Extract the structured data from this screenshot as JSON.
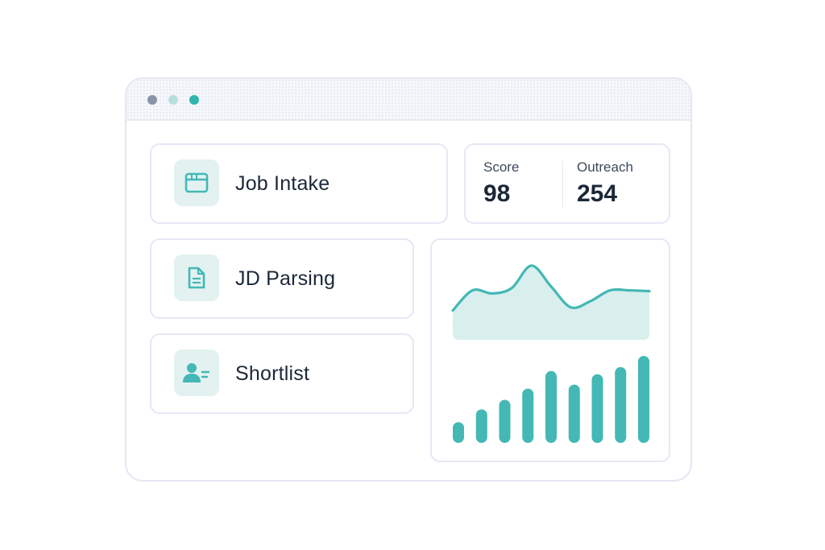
{
  "colors": {
    "accent": "#43b8b5",
    "accent_light": "#d9efed",
    "text_dark": "#1b2838",
    "dot_1": "#8a94a6",
    "dot_2": "#b8dedb",
    "dot_3": "#2fb5ad"
  },
  "window": {
    "dots": [
      "window-dot-gray",
      "window-dot-light-teal",
      "window-dot-teal"
    ]
  },
  "steps": [
    {
      "label": "Job Intake",
      "icon": "browser-window-icon"
    },
    {
      "label": "JD Parsing",
      "icon": "document-icon"
    },
    {
      "label": "Shortlist",
      "icon": "user-list-icon"
    }
  ],
  "stats": {
    "score_label": "Score",
    "score_value": "98",
    "outreach_label": "Outreach",
    "outreach_value": "254"
  },
  "chart_data": [
    {
      "type": "area",
      "x": [
        0,
        1,
        2,
        3,
        4,
        5,
        6,
        7,
        8,
        9,
        10
      ],
      "values": [
        38,
        64,
        60,
        67,
        96,
        69,
        42,
        50,
        64,
        64,
        63
      ],
      "ylim": [
        0,
        100
      ],
      "grid": false
    },
    {
      "type": "bar",
      "values": [
        26,
        42,
        54,
        68,
        90,
        73,
        86,
        95,
        109
      ],
      "ylim": [
        0,
        115
      ],
      "grid": false
    }
  ]
}
